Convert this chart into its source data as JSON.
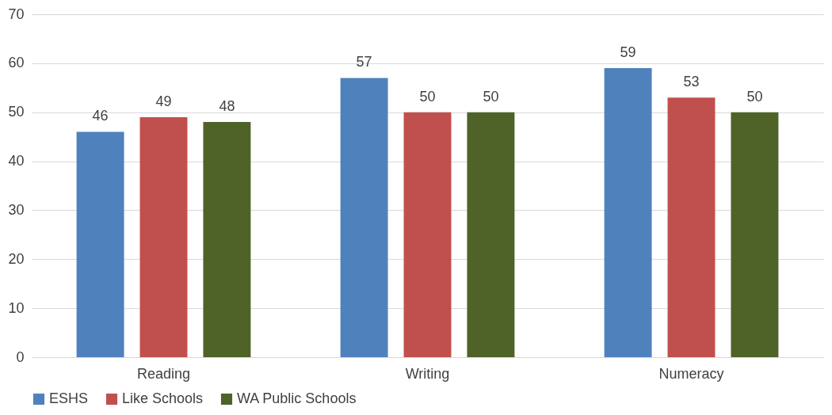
{
  "chart_data": {
    "type": "bar",
    "categories": [
      "Reading",
      "Writing",
      "Numeracy"
    ],
    "series": [
      {
        "name": "ESHS",
        "color": "#4f81bd",
        "values": [
          46,
          57,
          59
        ]
      },
      {
        "name": "Like Schools",
        "color": "#c0504d",
        "values": [
          49,
          50,
          53
        ]
      },
      {
        "name": "WA Public Schools",
        "color": "#4f6228",
        "values": [
          48,
          50,
          50
        ]
      }
    ],
    "ylim": [
      0,
      70
    ],
    "yticks": [
      0,
      10,
      20,
      30,
      40,
      50,
      60,
      70
    ],
    "grid": "y",
    "legend": "bottom",
    "data_labels": true
  }
}
